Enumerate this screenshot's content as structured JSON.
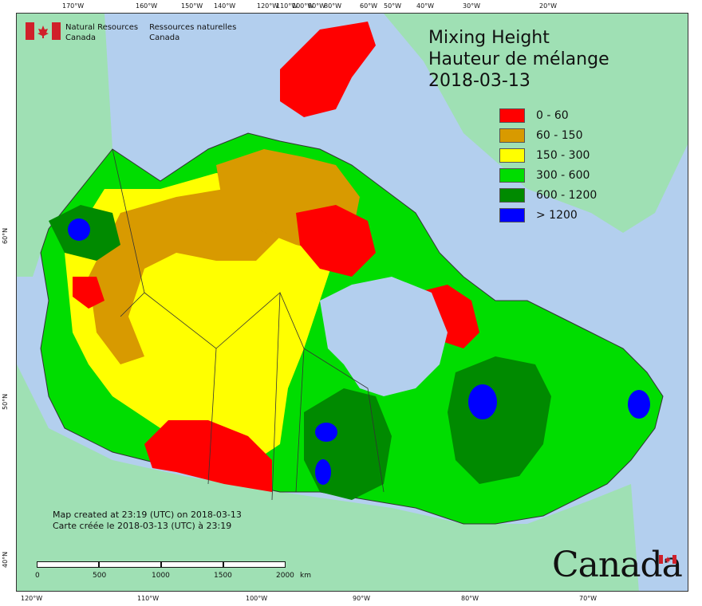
{
  "header": {
    "title_en": "Mixing Height",
    "title_fr": "Hauteur de mélange",
    "date": "2018-03-13"
  },
  "legend": [
    {
      "label": "0 - 60",
      "color": "#ff0000"
    },
    {
      "label": "60 - 150",
      "color": "#d89a00"
    },
    {
      "label": "150 - 300",
      "color": "#ffff00"
    },
    {
      "label": "300 - 600",
      "color": "#00dd00"
    },
    {
      "label": "600 - 1200",
      "color": "#008a00"
    },
    {
      "label": "> 1200",
      "color": "#0000ff"
    }
  ],
  "agency": {
    "en_line1": "Natural Resources",
    "en_line2": "Canada",
    "fr_line1": "Ressources naturelles",
    "fr_line2": "Canada"
  },
  "credits": {
    "line_en": "Map created at 23:19 (UTC) on 2018-03-13",
    "line_fr": "Carte créée le 2018-03-13 (UTC) à 23:19"
  },
  "scale_bar": {
    "labels": [
      "0",
      "500",
      "1000",
      "1500",
      "2000"
    ],
    "unit": "km"
  },
  "graticule": {
    "top": [
      "170°W",
      "160°W",
      "150°W",
      "140°W",
      "120°W",
      "110°W",
      "100°W",
      "90°W",
      "80°W",
      "60°W",
      "50°W",
      "40°W",
      "30°W",
      "20°W"
    ],
    "bottom": [
      "120°W",
      "110°W",
      "100°W",
      "90°W",
      "80°W",
      "70°W"
    ],
    "left": [
      "60°N",
      "50°N",
      "40°N"
    ],
    "right": [
      "60°N",
      "50°N",
      "40°N"
    ]
  },
  "wordmark": "Canada",
  "colors": {
    "ocean": "#b3cfee",
    "foreign_land": "#9fe0b4",
    "border": "#333333"
  }
}
